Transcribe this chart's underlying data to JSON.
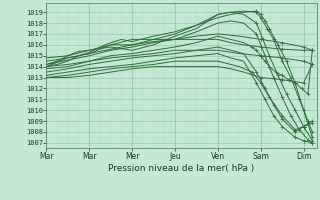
{
  "xlabel": "Pression niveau de la mer( hPa )",
  "ylim": [
    1006.5,
    1019.8
  ],
  "xlim": [
    0,
    6.3
  ],
  "yticks": [
    1007,
    1008,
    1009,
    1010,
    1011,
    1012,
    1013,
    1014,
    1015,
    1016,
    1017,
    1018,
    1019
  ],
  "xtick_labels": [
    "Mar",
    "Mar",
    "Mer",
    "Jeu",
    "Ven",
    "Sam",
    "Dim"
  ],
  "xtick_positions": [
    0.0,
    1.0,
    2.0,
    3.0,
    4.0,
    5.0,
    6.0
  ],
  "bg_color": "#c5e8d5",
  "grid_color_major": "#9dc8b0",
  "grid_color_minor": "#b8dcc8",
  "line_color": "#2d6e3a",
  "lines": [
    {
      "x": [
        0.0,
        0.25,
        0.5,
        0.75,
        1.0,
        1.25,
        1.5,
        1.75,
        2.0,
        2.5,
        3.0,
        3.5,
        4.0,
        4.3,
        4.6,
        4.9,
        5.0,
        5.1,
        5.2,
        5.4,
        5.6,
        5.8,
        6.0,
        6.2
      ],
      "y": [
        1014.0,
        1014.2,
        1014.5,
        1015.0,
        1015.3,
        1015.8,
        1016.2,
        1016.5,
        1016.3,
        1016.8,
        1017.2,
        1017.8,
        1018.5,
        1018.8,
        1019.0,
        1019.1,
        1018.8,
        1018.2,
        1017.5,
        1016.0,
        1014.5,
        1012.5,
        1010.0,
        1007.5
      ]
    },
    {
      "x": [
        0.0,
        0.25,
        0.5,
        0.75,
        1.0,
        1.5,
        2.0,
        2.5,
        3.0,
        3.5,
        4.0,
        4.3,
        4.6,
        4.9,
        5.0,
        5.15,
        5.3,
        5.5,
        5.7,
        5.9,
        6.1,
        6.2
      ],
      "y": [
        1014.2,
        1014.5,
        1015.0,
        1015.4,
        1015.5,
        1015.8,
        1015.5,
        1016.0,
        1016.8,
        1017.5,
        1018.8,
        1019.0,
        1019.1,
        1019.0,
        1018.5,
        1017.5,
        1016.5,
        1014.5,
        1013.0,
        1011.0,
        1009.0,
        1008.0
      ]
    },
    {
      "x": [
        0.0,
        0.5,
        1.0,
        1.5,
        2.0,
        2.5,
        3.0,
        3.5,
        4.0,
        4.3,
        4.6,
        4.9,
        5.05,
        5.2,
        5.4,
        5.6,
        5.8,
        6.0,
        6.2
      ],
      "y": [
        1014.0,
        1014.8,
        1015.2,
        1016.0,
        1016.0,
        1016.5,
        1017.0,
        1017.8,
        1018.8,
        1019.0,
        1018.8,
        1018.0,
        1016.5,
        1015.0,
        1013.2,
        1011.5,
        1010.0,
        1008.5,
        1007.2
      ]
    },
    {
      "x": [
        0.0,
        0.5,
        1.0,
        1.5,
        2.0,
        2.5,
        3.0,
        3.5,
        4.0,
        4.3,
        4.6,
        4.9,
        5.1,
        5.3,
        5.5,
        5.7,
        5.9,
        6.1,
        6.2
      ],
      "y": [
        1014.2,
        1014.6,
        1015.0,
        1015.5,
        1015.8,
        1016.2,
        1016.5,
        1017.2,
        1018.0,
        1018.2,
        1018.0,
        1017.0,
        1015.0,
        1013.0,
        1011.2,
        1009.5,
        1008.2,
        1007.3,
        1007.0
      ]
    },
    {
      "x": [
        0.0,
        0.5,
        1.0,
        1.5,
        2.0,
        2.5,
        3.0,
        3.5,
        4.0,
        4.3,
        4.6,
        4.8,
        4.9,
        5.0,
        5.1,
        5.2,
        5.35,
        5.5,
        5.65,
        5.8,
        5.95,
        6.1,
        6.2
      ],
      "y": [
        1013.8,
        1014.0,
        1014.5,
        1015.0,
        1015.2,
        1015.5,
        1015.8,
        1016.2,
        1016.8,
        1016.5,
        1016.2,
        1015.8,
        1015.5,
        1015.0,
        1014.5,
        1014.0,
        1013.5,
        1013.2,
        1012.8,
        1012.5,
        1012.0,
        1011.5,
        1015.5
      ]
    },
    {
      "x": [
        0.0,
        0.5,
        1.0,
        1.5,
        2.0,
        2.5,
        3.0,
        3.5,
        4.0,
        4.3,
        4.6,
        4.9,
        5.1,
        5.3,
        5.5,
        5.8,
        6.0,
        6.2
      ],
      "y": [
        1013.5,
        1013.8,
        1014.2,
        1014.5,
        1014.8,
        1015.0,
        1015.2,
        1015.5,
        1015.8,
        1015.5,
        1015.2,
        1013.5,
        1012.0,
        1010.5,
        1009.2,
        1008.0,
        1008.5,
        1008.8
      ]
    },
    {
      "x": [
        0.0,
        0.5,
        1.0,
        1.5,
        2.0,
        2.5,
        3.0,
        3.5,
        4.0,
        4.3,
        4.6,
        4.9,
        5.1,
        5.3,
        5.5,
        5.8,
        6.0,
        6.2
      ],
      "y": [
        1013.2,
        1013.5,
        1013.8,
        1014.0,
        1014.2,
        1014.5,
        1014.8,
        1015.0,
        1015.2,
        1014.8,
        1014.5,
        1012.5,
        1011.0,
        1009.5,
        1008.5,
        1007.5,
        1007.2,
        1007.0
      ]
    },
    {
      "x": [
        0.0,
        0.5,
        1.0,
        1.5,
        2.0,
        2.5,
        3.0,
        3.5,
        4.0,
        4.5,
        5.0,
        5.5,
        6.0,
        6.2
      ],
      "y": [
        1014.5,
        1014.8,
        1015.2,
        1015.6,
        1016.0,
        1016.3,
        1016.5,
        1016.8,
        1017.0,
        1016.8,
        1016.5,
        1016.2,
        1015.8,
        1015.5
      ]
    },
    {
      "x": [
        0.0,
        0.5,
        1.0,
        1.5,
        2.0,
        2.5,
        3.0,
        3.5,
        4.0,
        4.5,
        5.0,
        5.5,
        6.0,
        6.2
      ],
      "y": [
        1014.0,
        1014.2,
        1014.5,
        1014.8,
        1015.0,
        1015.2,
        1015.5,
        1015.5,
        1015.5,
        1015.2,
        1015.0,
        1014.8,
        1014.5,
        1014.2
      ]
    },
    {
      "x": [
        0.0,
        0.5,
        1.0,
        1.5,
        2.0,
        2.5,
        3.0,
        3.5,
        4.0,
        4.5,
        4.8,
        5.0,
        5.2,
        5.5,
        5.8,
        6.0,
        6.2
      ],
      "y": [
        1013.0,
        1013.2,
        1013.5,
        1013.8,
        1014.0,
        1014.2,
        1014.5,
        1014.5,
        1014.5,
        1014.0,
        1013.5,
        1012.5,
        1011.2,
        1009.5,
        1008.2,
        1008.5,
        1009.0
      ]
    },
    {
      "x": [
        0.0,
        0.5,
        1.0,
        1.5,
        2.0,
        2.5,
        3.0,
        3.5,
        4.0,
        4.3,
        4.6,
        5.0,
        5.5,
        6.0,
        6.2
      ],
      "y": [
        1014.8,
        1015.0,
        1015.5,
        1016.0,
        1016.5,
        1016.5,
        1016.5,
        1016.5,
        1016.5,
        1016.2,
        1016.0,
        1015.8,
        1015.6,
        1015.5,
        1015.5
      ]
    },
    {
      "x": [
        0.0,
        0.5,
        1.0,
        1.5,
        2.0,
        2.5,
        3.0,
        3.5,
        4.0,
        4.3,
        4.6,
        5.0,
        5.5,
        6.0,
        6.2
      ],
      "y": [
        1013.0,
        1013.0,
        1013.2,
        1013.5,
        1013.8,
        1014.0,
        1014.0,
        1014.0,
        1014.0,
        1013.8,
        1013.5,
        1013.0,
        1012.8,
        1012.5,
        1014.2
      ]
    }
  ],
  "marker_positions": [
    {
      "x": [
        4.9,
        5.1,
        5.35,
        5.55,
        5.75,
        5.95,
        6.1,
        6.2
      ],
      "y": [
        1019.1,
        1018.2,
        1016.5,
        1014.5,
        1013.0,
        1011.0,
        1009.0,
        1007.5
      ]
    },
    {
      "x": [
        5.0,
        5.2,
        5.4,
        5.6,
        5.8,
        6.0,
        6.2
      ],
      "y": [
        1017.5,
        1015.0,
        1013.2,
        1011.5,
        1010.0,
        1008.5,
        1007.2
      ]
    },
    {
      "x": [
        5.1,
        5.3,
        5.5,
        5.7,
        5.9,
        6.1
      ],
      "y": [
        1015.0,
        1013.0,
        1011.2,
        1009.5,
        1008.2,
        1007.3
      ]
    }
  ]
}
